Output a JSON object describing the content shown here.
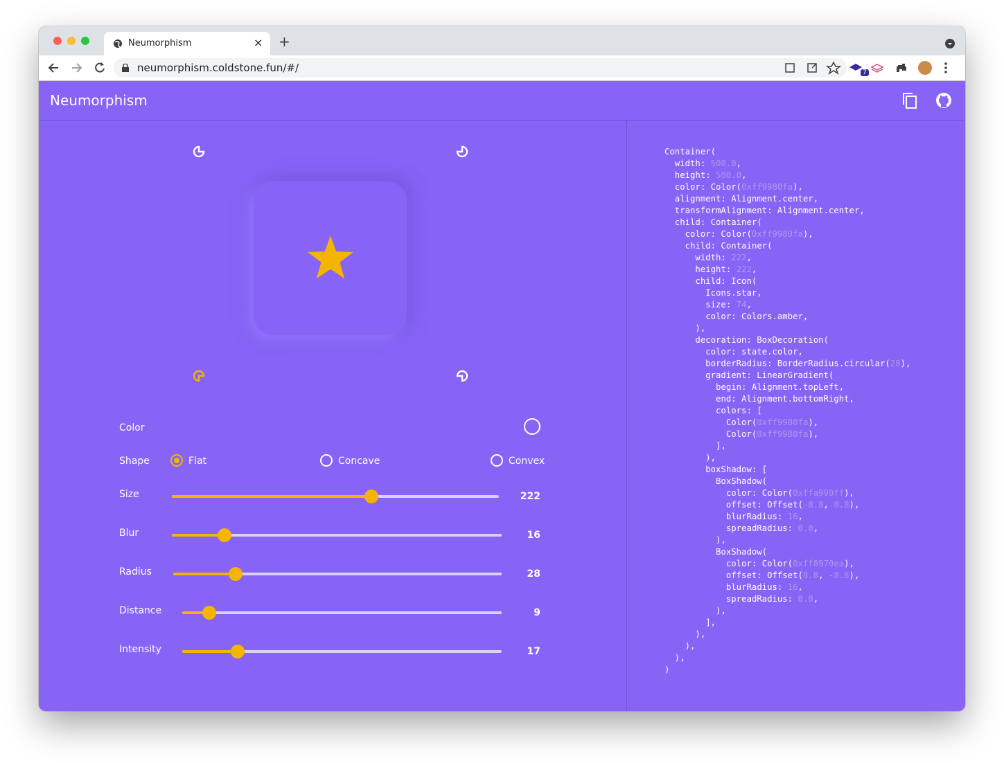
{
  "browser": {
    "tab_title": "Neumorphism",
    "url": "neumorphism.coldstone.fun/#/",
    "extension_badge": 7
  },
  "app": {
    "title": "Neumorphism"
  },
  "controls": {
    "color_label": "Color",
    "shape": {
      "label": "Shape",
      "options": [
        "Flat",
        "Concave",
        "Convex"
      ]
    },
    "sliders": [
      {
        "label": "Size",
        "value": 222
      },
      {
        "label": "Blur",
        "value": 16
      },
      {
        "label": "Radius",
        "value": 28
      },
      {
        "label": "Distance",
        "value": 9
      },
      {
        "label": "Intensity",
        "value": 17
      }
    ]
  },
  "code": {
    "lines": [
      [
        "Container("
      ],
      [
        "  width: ",
        "500.0",
        ","
      ],
      [
        "  height: ",
        "500.0",
        ","
      ],
      [
        "  color: Color(",
        "0xff9980fa",
        "),"
      ],
      [
        "  alignment: Alignment.center,"
      ],
      [
        "  transformAlignment: Alignment.center,"
      ],
      [
        "  child: Container("
      ],
      [
        "    color: Color(",
        "0xff9980fa",
        "),"
      ],
      [
        "    child: Container("
      ],
      [
        "      width: ",
        "222",
        ","
      ],
      [
        "      height: ",
        "222",
        ","
      ],
      [
        "      child: Icon("
      ],
      [
        "        Icons.star,"
      ],
      [
        "        size: ",
        "74",
        ","
      ],
      [
        "        color: Colors.amber,"
      ],
      [
        "      ),"
      ],
      [
        "      decoration: BoxDecoration("
      ],
      [
        "        color: state.color,"
      ],
      [
        "        borderRadius: BorderRadius.circular(",
        "28",
        "),"
      ],
      [
        "        gradient: LinearGradient("
      ],
      [
        "          begin: Alignment.topLeft,"
      ],
      [
        "          end: Alignment.bottomRight,"
      ],
      [
        "          colors: ["
      ],
      [
        "            Color(",
        "0xff9980fa",
        "),"
      ],
      [
        "            Color(",
        "0xff9980fa",
        "),"
      ],
      [
        "          ],"
      ],
      [
        "        ),"
      ],
      [
        "        boxShadow: ["
      ],
      [
        "          BoxShadow("
      ],
      [
        "            color: Color(",
        "0xffa990ff",
        "),"
      ],
      [
        "            offset: Offset(",
        "-8.8",
        ", ",
        "8.8",
        "),"
      ],
      [
        "            blurRadius: ",
        "16",
        ","
      ],
      [
        "            spreadRadius: ",
        "0.0",
        ","
      ],
      [
        "          ),"
      ],
      [
        "          BoxShadow("
      ],
      [
        "            color: Color(",
        "0xff8970ea",
        "),"
      ],
      [
        "            offset: Offset(",
        "8.8",
        ", ",
        "-8.8",
        "),"
      ],
      [
        "            blurRadius: ",
        "16",
        ","
      ],
      [
        "            spreadRadius: ",
        "0.0",
        ","
      ],
      [
        "          ),"
      ],
      [
        "        ],"
      ],
      [
        "      ),"
      ],
      [
        "    ),"
      ],
      [
        "  ),"
      ],
      [
        ")"
      ]
    ]
  }
}
